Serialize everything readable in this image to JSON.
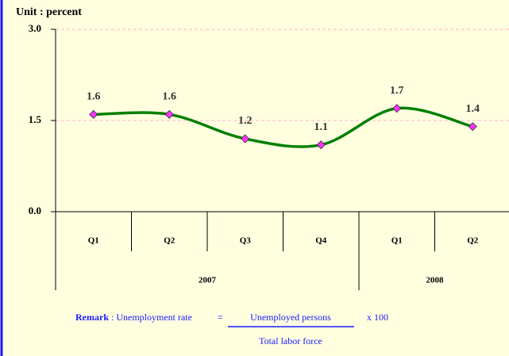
{
  "chart_data": {
    "type": "line",
    "y_label": "Unit : percent",
    "categories": [
      "Q1",
      "Q2",
      "Q3",
      "Q4",
      "Q1",
      "Q2"
    ],
    "category_groups": [
      "2007",
      "2007",
      "2007",
      "2007",
      "2008",
      "2008"
    ],
    "series": [
      {
        "name": "Unemployment rate",
        "color": "#008000",
        "marker_color": "#ff33ff",
        "values": [
          1.6,
          1.6,
          1.2,
          1.1,
          1.7,
          1.4
        ]
      }
    ],
    "ylim": [
      0,
      3
    ],
    "yticks": [
      {
        "value": 0,
        "label": "0.0"
      },
      {
        "value": 1.5,
        "label": "1.5"
      },
      {
        "value": 3,
        "label": "3.0"
      }
    ],
    "grid": true
  },
  "remark": {
    "label": "Remark",
    "text": ": Unemployment rate",
    "equals": "=",
    "numerator": "Unemployed persons",
    "times": "x 100",
    "denominator": "Total labor force"
  }
}
